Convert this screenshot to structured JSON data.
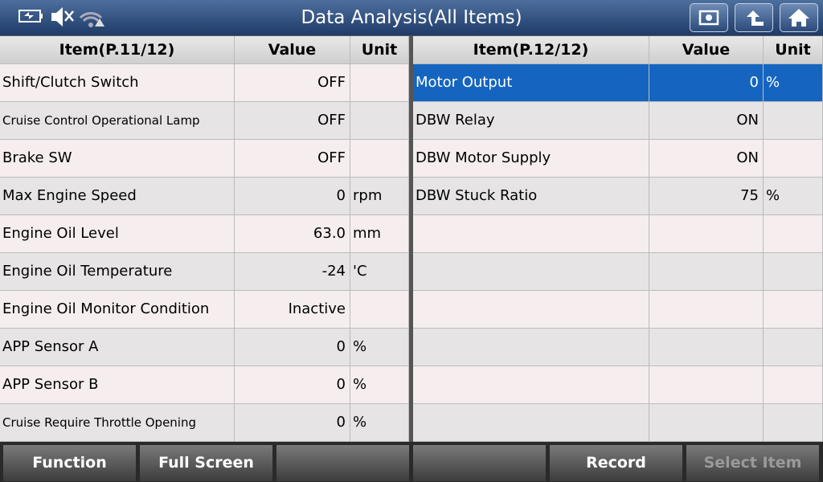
{
  "header": {
    "title": "Data Analysis(All Items)"
  },
  "left_table": {
    "columns": [
      "Item(P.11/12)",
      "Value",
      "Unit"
    ],
    "rows": [
      {
        "item": "Shift/Clutch Switch",
        "value": "OFF"
      },
      {
        "item": "Cruise Control Operational Lamp",
        "value": "OFF"
      },
      {
        "item": "Brake SW",
        "value": "OFF"
      },
      {
        "item": "Max Engine Speed",
        "value": "0",
        "unit": "rpm"
      },
      {
        "item": "Engine Oil Level",
        "value": "63.0",
        "unit": "mm"
      },
      {
        "item": "Engine Oil Temperature",
        "value": "-24",
        "unit": "'C"
      },
      {
        "item": "Engine Oil Monitor Condition",
        "value": "Inactive"
      },
      {
        "item": "APP Sensor A",
        "value": "0",
        "unit": "%"
      },
      {
        "item": "APP Sensor B",
        "value": "0",
        "unit": "%"
      },
      {
        "item": "Cruise Require Throttle Opening",
        "value": "0",
        "unit": "%"
      }
    ]
  },
  "right_table": {
    "columns": [
      "Item(P.12/12)",
      "Value",
      "Unit"
    ],
    "selected_row": 0,
    "rows": [
      {
        "item": "Motor Output",
        "value": "0",
        "unit": "%"
      },
      {
        "item": "DBW Relay",
        "value": "ON"
      },
      {
        "item": "DBW Motor Supply",
        "value": "ON"
      },
      {
        "item": "DBW Stuck Ratio",
        "value": "75",
        "unit": "%"
      }
    ]
  },
  "footer": {
    "buttons": [
      "Function",
      "Full Screen",
      null,
      null,
      "Record",
      "Select Item"
    ],
    "disabled": [
      5
    ]
  }
}
